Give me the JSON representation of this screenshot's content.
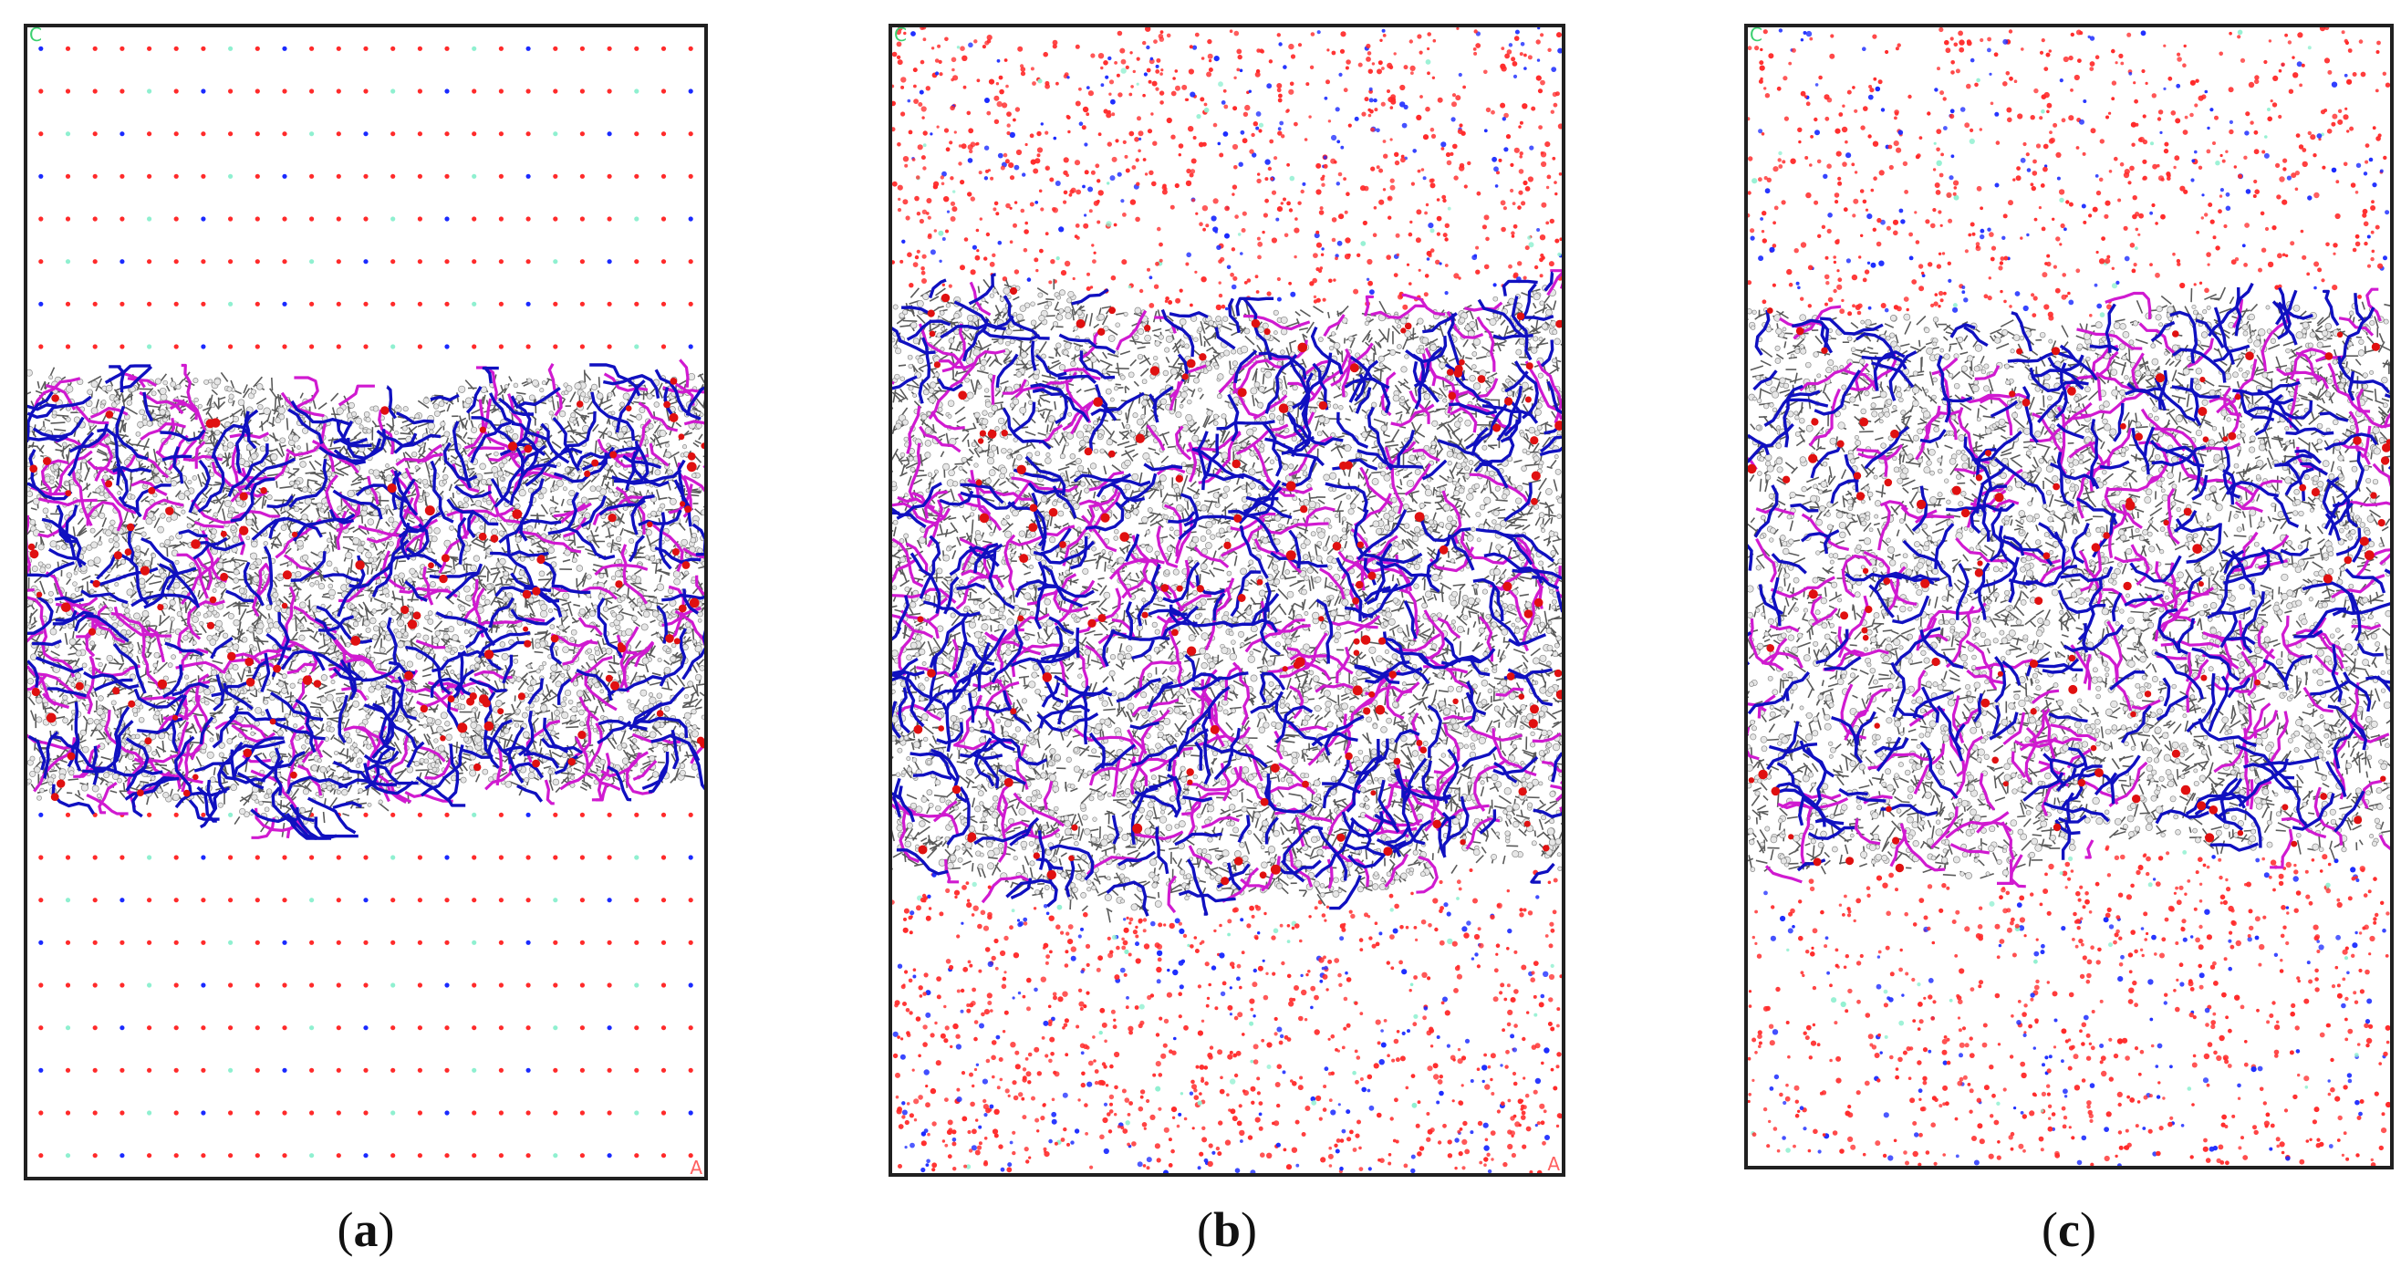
{
  "figure": {
    "panels": [
      {
        "id": "a",
        "caption_open": "(",
        "caption_letter": "a",
        "caption_close": ")",
        "axis_marks": {
          "top_left": "C",
          "bottom_right": "A"
        },
        "solvent_arrangement": "ordered lattice",
        "membrane_band_top_fraction": 0.31,
        "membrane_band_bottom_fraction": 0.67
      },
      {
        "id": "b",
        "caption_open": "(",
        "caption_letter": "b",
        "caption_close": ")",
        "axis_marks": {
          "top_left": "C",
          "bottom_right": "A"
        },
        "solvent_arrangement": "disordered",
        "membrane_band_top_fraction": 0.24,
        "membrane_band_bottom_fraction": 0.75
      },
      {
        "id": "c",
        "caption_open": "(",
        "caption_letter": "c",
        "caption_close": ")",
        "axis_marks": {
          "top_left": "C",
          "bottom_right": ""
        },
        "solvent_arrangement": "disordered, sparse",
        "membrane_band_top_fraction": 0.25,
        "membrane_band_bottom_fraction": 0.73
      }
    ]
  },
  "colors": {
    "frame": "#202020",
    "water_oxygen": "#ff2a2a",
    "ion_blue": "#1a2aff",
    "ion_cyan": "#8ff0d0",
    "lipid_carbon": "#5a5a5a",
    "lipid_hydrogen": "#e6e6e6",
    "headgroup_blue": "#1010c0",
    "chain_magenta": "#d01ad0",
    "oxygen_red": "#e01010",
    "axis_green": "#3ad070",
    "axis_red": "#ff6060"
  }
}
